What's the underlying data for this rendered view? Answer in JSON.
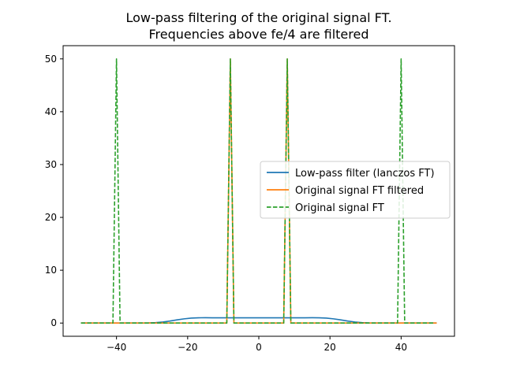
{
  "chart_data": {
    "type": "line",
    "title": "Low-pass filtering of the original signal FT.",
    "subtitle": "Frequencies above fe/4 are filtered",
    "xlabel": "",
    "ylabel": "",
    "xlim": [
      -55,
      55
    ],
    "ylim": [
      -2.5,
      52.5
    ],
    "xticks": [
      -40,
      -20,
      0,
      20,
      40
    ],
    "yticks": [
      0,
      10,
      20,
      30,
      40,
      50
    ],
    "grid": false,
    "legend_position": "center-right",
    "series": [
      {
        "name": "Low-pass filter (lanczos FT)",
        "color": "#1f77b4",
        "style": "solid",
        "x": [
          -50,
          -33,
          -31,
          -29,
          -27,
          -25,
          -23,
          -21,
          -19,
          -17,
          -15,
          -13,
          13,
          15,
          17,
          19,
          21,
          23,
          25,
          27,
          29,
          31,
          33,
          50
        ],
        "y": [
          0,
          0,
          0.02,
          0.08,
          0.2,
          0.38,
          0.6,
          0.8,
          0.94,
          1.0,
          1.01,
          1.0,
          1.0,
          1.01,
          1.0,
          0.94,
          0.8,
          0.6,
          0.38,
          0.2,
          0.08,
          0.02,
          0,
          0
        ]
      },
      {
        "name": "Original signal FT filtered",
        "color": "#ff7f0e",
        "style": "solid",
        "x": [
          -50,
          -9,
          -8,
          -7,
          7,
          8,
          9,
          50
        ],
        "y": [
          0,
          0,
          50,
          0,
          0,
          50,
          0,
          0
        ]
      },
      {
        "name": "Original signal FT",
        "color": "#2ca02c",
        "style": "dashed",
        "x": [
          -50,
          -41,
          -40,
          -39,
          -9,
          -8,
          -7,
          7,
          8,
          9,
          39,
          40,
          41,
          49
        ],
        "y": [
          0,
          0,
          50,
          0,
          0,
          50,
          0,
          0,
          50,
          0,
          0,
          50,
          0,
          0
        ]
      }
    ]
  }
}
